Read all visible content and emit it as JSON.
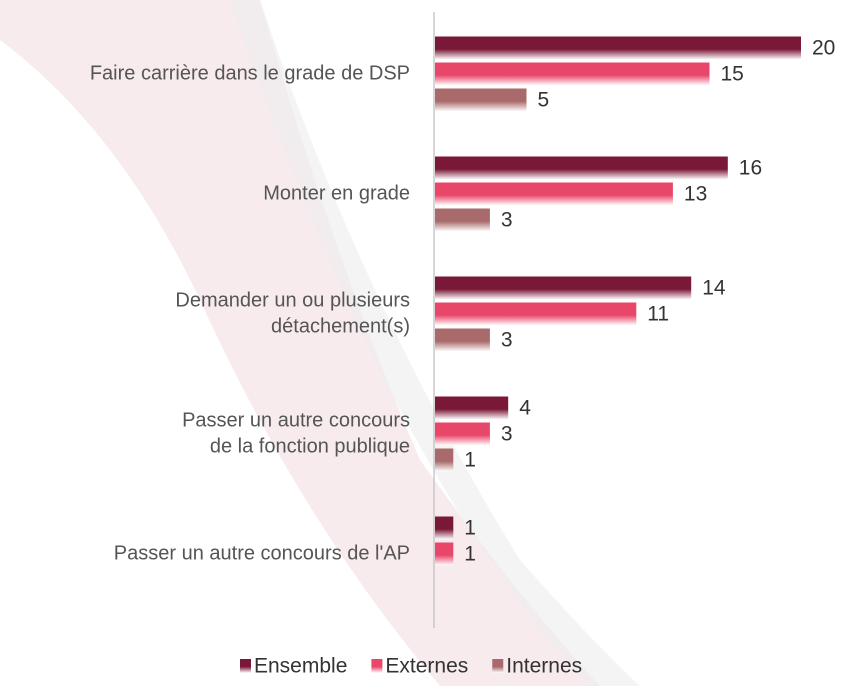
{
  "chart_data": {
    "type": "hbar",
    "categories": [
      [
        "Faire carrière dans le grade de DSP"
      ],
      [
        "Monter en grade"
      ],
      [
        "Demander un ou plusieurs",
        "détachement(s)"
      ],
      [
        "Passer un autre concours",
        "de la fonction publique"
      ],
      [
        "Passer un autre concours de l'AP"
      ]
    ],
    "series": [
      {
        "name": "Ensemble",
        "color": "#7a1838",
        "values": [
          20,
          16,
          14,
          4,
          1
        ]
      },
      {
        "name": "Externes",
        "color": "#e8476a",
        "values": [
          15,
          13,
          11,
          3,
          1
        ]
      },
      {
        "name": "Internes",
        "color": "#a86a6a",
        "values": [
          5,
          3,
          3,
          1,
          null
        ]
      }
    ],
    "legend": "bottom"
  }
}
